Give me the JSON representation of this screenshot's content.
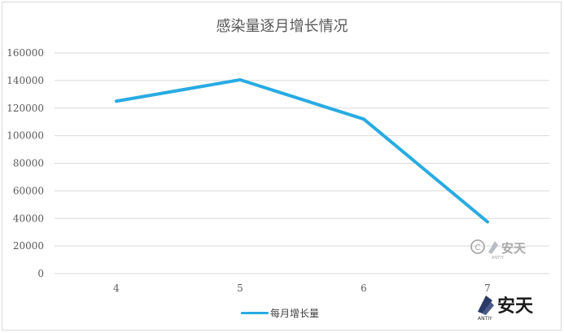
{
  "chart_data": {
    "type": "line",
    "title": "感染量逐月增长情况",
    "categories": [
      "4",
      "5",
      "6",
      "7"
    ],
    "series": [
      {
        "name": "每月增长量",
        "values": [
          125000,
          140500,
          112000,
          37500
        ]
      }
    ],
    "ylim": [
      0,
      160000
    ],
    "yticks": [
      0,
      20000,
      40000,
      60000,
      80000,
      100000,
      120000,
      140000,
      160000
    ],
    "ytick_labels": [
      "0",
      "20000",
      "40000",
      "60000",
      "80000",
      "100000",
      "120000",
      "140000",
      "160000"
    ],
    "grid": true,
    "legend_position": "bottom",
    "line_color": "#29abe2"
  },
  "watermark": {
    "mark_large": "© 安天",
    "mark_small": "安天",
    "sub": "ANTIY"
  }
}
